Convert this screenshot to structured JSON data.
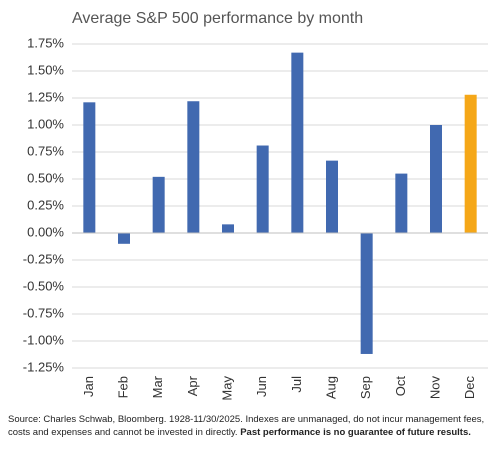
{
  "chart_data": {
    "type": "bar",
    "title": "Average S&P 500 performance by month",
    "categories": [
      "Jan",
      "Feb",
      "Mar",
      "Apr",
      "May",
      "Jun",
      "Jul",
      "Aug",
      "Sep",
      "Oct",
      "Nov",
      "Dec"
    ],
    "values": [
      1.21,
      -0.1,
      0.52,
      1.22,
      0.08,
      0.81,
      1.67,
      0.67,
      -1.12,
      0.55,
      1.0,
      1.28
    ],
    "colors": [
      "#4169b0",
      "#4169b0",
      "#4169b0",
      "#4169b0",
      "#4169b0",
      "#4169b0",
      "#4169b0",
      "#4169b0",
      "#4169b0",
      "#4169b0",
      "#4169b0",
      "#f5a718"
    ],
    "ylim": [
      -1.25,
      1.75
    ],
    "yticks": [
      {
        "value": -1.25,
        "label": "-1.25%"
      },
      {
        "value": -1.0,
        "label": "-1.00%"
      },
      {
        "value": -0.75,
        "label": "-0.75%"
      },
      {
        "value": -0.5,
        "label": "-0.50%"
      },
      {
        "value": -0.25,
        "label": "-0.25%"
      },
      {
        "value": 0,
        "label": "0.00%"
      },
      {
        "value": 0.25,
        "label": "0.25%"
      },
      {
        "value": 0.5,
        "label": "0.50%"
      },
      {
        "value": 0.75,
        "label": "0.75%"
      },
      {
        "value": 1.0,
        "label": "1.00%"
      },
      {
        "value": 1.25,
        "label": "1.25%"
      },
      {
        "value": 1.5,
        "label": "1.50%"
      },
      {
        "value": 1.75,
        "label": "1.75%"
      }
    ],
    "grid": true,
    "footnote": "Source: Charles Schwab, Bloomberg. 1928-11/30/2025. Indexes are unmanaged, do not incur management fees, costs and expenses and cannot be invested in directly.",
    "footnote_bold": "Past performance is no guarantee of future results."
  }
}
